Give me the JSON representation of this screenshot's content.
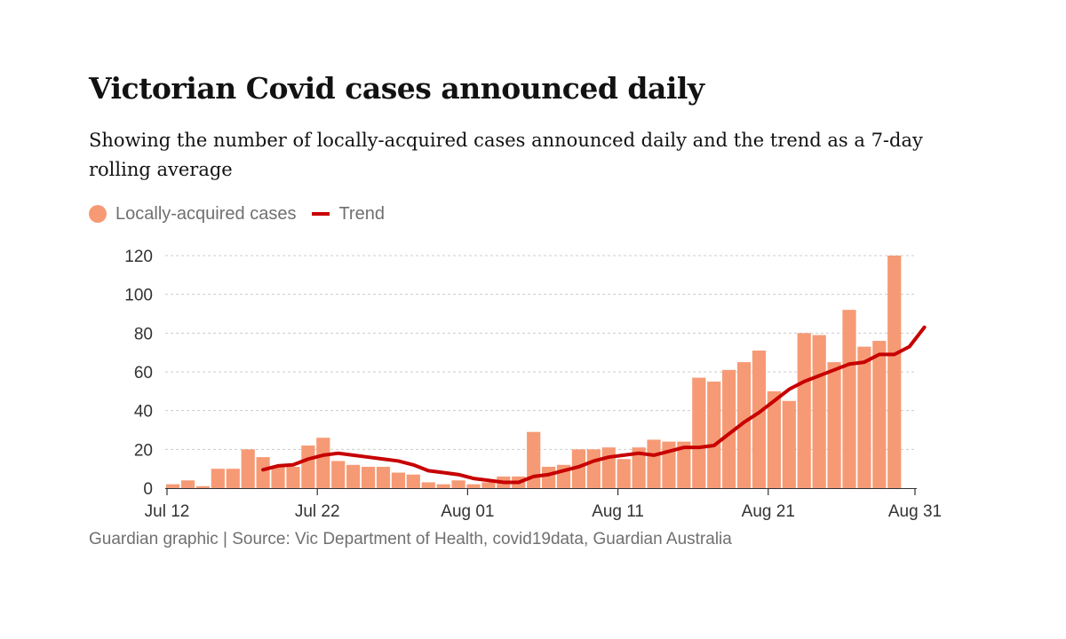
{
  "title": "Victorian Covid cases announced daily",
  "subtitle": "Showing the number of locally-acquired cases announced daily and the trend as a 7-day rolling average",
  "legend": {
    "cases_label": "Locally-acquired cases",
    "trend_label": "Trend"
  },
  "source": "Guardian graphic | Source: Vic Department of Health, covid19data, Guardian Australia",
  "colors": {
    "bar": "#f69a75",
    "trend": "#c70000",
    "grid": "#cccccc",
    "axis_text": "#333333",
    "axis_line": "#333333"
  },
  "chart_data": {
    "type": "bar",
    "title": "Victorian Covid cases announced daily",
    "xlabel": "",
    "ylabel": "",
    "ylim": [
      0,
      120
    ],
    "yticks": [
      0,
      20,
      40,
      60,
      80,
      100,
      120
    ],
    "xtick_labels": [
      {
        "day_index": 0,
        "label": "Jul 12"
      },
      {
        "day_index": 10,
        "label": "Jul 22"
      },
      {
        "day_index": 20,
        "label": "Aug 01"
      },
      {
        "day_index": 30,
        "label": "Aug 11"
      },
      {
        "day_index": 40,
        "label": "Aug 21"
      },
      {
        "day_index": 50,
        "label": "Aug 31"
      }
    ],
    "start_date": "Jul 12",
    "grid": true,
    "series": [
      {
        "name": "Locally-acquired cases",
        "kind": "bar",
        "values": [
          2,
          4,
          1,
          10,
          10,
          20,
          16,
          11,
          11,
          22,
          26,
          14,
          12,
          11,
          11,
          8,
          7,
          3,
          2,
          4,
          2,
          3,
          6,
          6,
          29,
          11,
          12,
          20,
          20,
          21,
          15,
          21,
          25,
          24,
          24,
          57,
          55,
          61,
          65,
          71,
          50,
          45,
          80,
          79,
          65,
          92,
          73,
          76,
          120
        ]
      },
      {
        "name": "Trend",
        "kind": "line",
        "start_index": 6,
        "values": [
          9.5,
          11.5,
          12,
          15,
          17,
          18,
          17,
          16,
          15,
          14,
          12,
          9,
          8,
          7,
          5,
          4,
          3,
          3,
          6,
          7,
          9,
          11,
          14,
          16,
          17,
          18,
          17,
          19,
          21,
          21,
          22,
          28,
          34,
          39,
          45,
          51,
          55,
          58,
          61,
          64,
          65,
          69,
          69,
          73,
          83
        ]
      }
    ]
  }
}
